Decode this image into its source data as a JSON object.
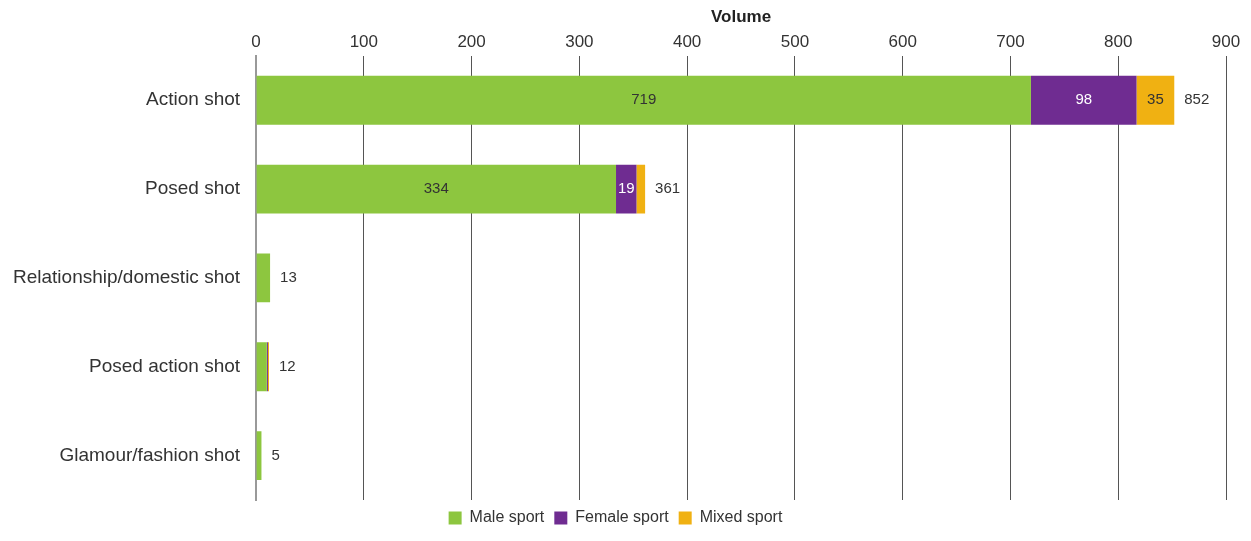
{
  "chart_data": {
    "type": "bar",
    "orientation": "horizontal",
    "stacked": true,
    "xlabel": "Volume",
    "categories": [
      "Action shot",
      "Posed shot",
      "Relationship/domestic shot",
      "Posed action shot",
      "Glamour/fashion shot"
    ],
    "series": [
      {
        "name": "Male sport",
        "color": "#8dc63f",
        "values": [
          719,
          334,
          13,
          10,
          5
        ],
        "value_labels": [
          "719",
          "334",
          null,
          null,
          null
        ]
      },
      {
        "name": "Female sport",
        "color": "#6f2c91",
        "values": [
          98,
          19,
          null,
          1,
          null
        ],
        "value_labels": [
          "98",
          "19",
          null,
          null,
          null
        ]
      },
      {
        "name": "Mixed sport",
        "color": "#f0b112",
        "values": [
          35,
          8,
          null,
          1,
          null
        ],
        "value_labels": [
          "35",
          null,
          null,
          null,
          null
        ]
      }
    ],
    "totals": [
      "852",
      "361",
      "13",
      "12",
      "5"
    ],
    "xlim": [
      0,
      900
    ],
    "xticks": [
      0,
      100,
      200,
      300,
      400,
      500,
      600,
      700,
      800,
      900
    ],
    "grid": "x",
    "legend": "bottom"
  }
}
